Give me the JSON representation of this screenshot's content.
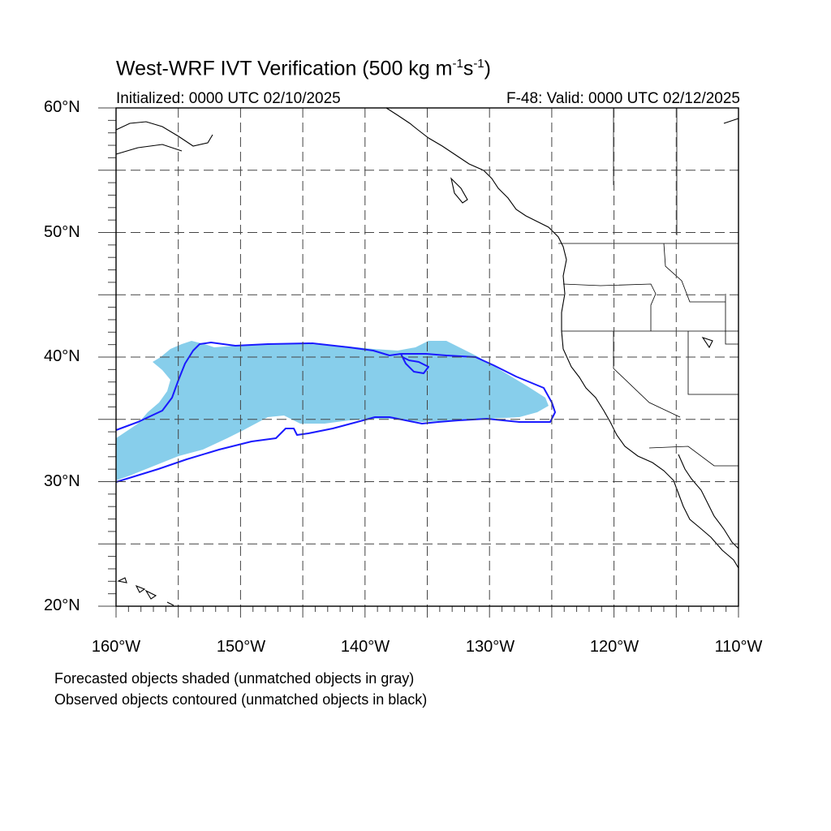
{
  "title": {
    "prefix": "West-WRF IVT Verification (500 kg m",
    "exp1": "-1",
    "middle": "s",
    "exp2": "-1",
    "suffix": ")"
  },
  "initialized": "Initialized: 0000 UTC 02/10/2025",
  "valid": "F-48: Valid: 0000 UTC 02/12/2025",
  "lat_labels": [
    "60°N",
    "50°N",
    "40°N",
    "30°N",
    "20°N"
  ],
  "lon_labels": [
    "160°W",
    "150°W",
    "140°W",
    "130°W",
    "120°W",
    "110°W"
  ],
  "notes": {
    "forecast": "Forecasted objects shaded (unmatched objects in gray)",
    "observed": "Observed objects contoured (unmatched objects in black)"
  },
  "colors": {
    "forecast_fill": "#87ceeb",
    "observed_contour": "#1a1aff",
    "coast": "#000000",
    "grid": "#444444"
  },
  "map_extent": {
    "lon_min": -160,
    "lon_max": -110,
    "lat_min": 20,
    "lat_max": 60
  },
  "grid_interval_deg": 5
}
